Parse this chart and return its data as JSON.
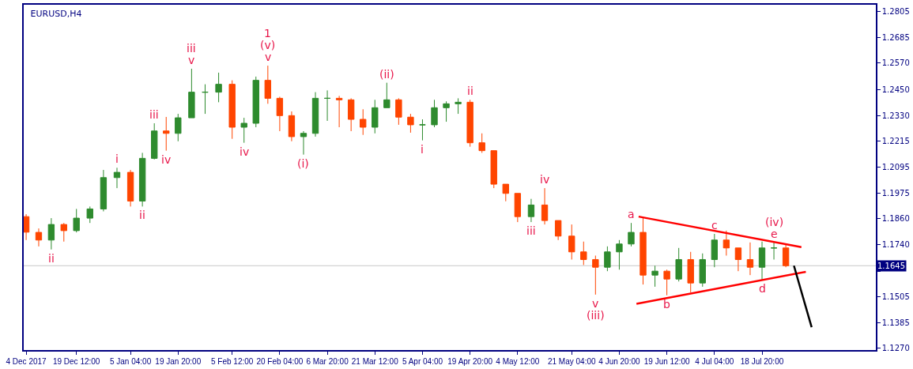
{
  "chart_data": {
    "type": "candlestick",
    "title": "EURUSD,H4",
    "x": [
      "2017-12-04T00:00",
      "2017-12-07T21:00",
      "2017-12-11T18:00",
      "2017-12-15T15:00",
      "2017-12-19T12:00",
      "2017-12-23T16:00",
      "2017-12-27T20:00",
      "2018-01-01T00:00",
      "2018-01-05T04:00",
      "2018-01-08T20:00",
      "2018-01-12T12:00",
      "2018-01-16T04:00",
      "2018-01-19T20:00",
      "2018-01-24T00:00",
      "2018-01-28T04:00",
      "2018-02-01T08:00",
      "2018-02-05T12:00",
      "2018-02-09T04:00",
      "2018-02-12T20:00",
      "2018-02-16T12:00",
      "2018-02-20T04:00",
      "2018-02-23T20:00",
      "2018-02-27T12:00",
      "2018-03-03T04:00",
      "2018-03-06T20:00",
      "2018-03-10T12:00",
      "2018-03-14T04:00",
      "2018-03-17T20:00",
      "2018-03-21T12:00",
      "2018-03-25T04:00",
      "2018-03-28T20:00",
      "2018-04-01T12:00",
      "2018-04-05T04:00",
      "2018-04-08T20:00",
      "2018-04-12T12:00",
      "2018-04-16T04:00",
      "2018-04-19T20:00",
      "2018-04-23T12:00",
      "2018-04-27T04:00",
      "2018-04-30T20:00",
      "2018-05-04T12:00",
      "2018-05-08T16:00",
      "2018-05-12T20:00",
      "2018-05-17T00:00",
      "2018-05-21T04:00",
      "2018-05-24T20:00",
      "2018-05-28T12:00",
      "2018-06-01T04:00",
      "2018-06-04T20:00",
      "2018-06-08T12:00",
      "2018-06-12T04:00",
      "2018-06-15T20:00",
      "2018-06-19T12:00",
      "2018-06-23T04:00",
      "2018-06-26T20:00",
      "2018-06-30T12:00",
      "2018-07-04T04:00",
      "2018-07-07T20:00",
      "2018-07-11T12:00",
      "2018-07-15T04:00",
      "2018-07-18T20:00",
      "2018-07-22T12:00",
      "2018-07-26T04:00"
    ],
    "ohlc": [
      [
        1.1869,
        1.188,
        1.1762,
        1.1798
      ],
      [
        1.1797,
        1.1815,
        1.1733,
        1.1762
      ],
      [
        1.1762,
        1.1862,
        1.1719,
        1.1833
      ],
      [
        1.1833,
        1.184,
        1.1755,
        1.1805
      ],
      [
        1.1805,
        1.1904,
        1.1797,
        1.1862
      ],
      [
        1.1862,
        1.1915,
        1.184,
        1.1904
      ],
      [
        1.1904,
        1.2082,
        1.1893,
        1.2047
      ],
      [
        1.2047,
        1.2092,
        1.1999,
        1.2071
      ],
      [
        1.2071,
        1.2082,
        1.1915,
        1.194
      ],
      [
        1.194,
        1.216,
        1.1915,
        1.2135
      ],
      [
        1.2135,
        1.2295,
        1.213,
        1.226
      ],
      [
        1.226,
        1.2324,
        1.217,
        1.2249
      ],
      [
        1.2249,
        1.2338,
        1.2213,
        1.232
      ],
      [
        1.232,
        1.2544,
        1.232,
        1.2437
      ],
      [
        1.2437,
        1.2473,
        1.2338,
        1.2437
      ],
      [
        1.2437,
        1.2526,
        1.2391,
        1.2473
      ],
      [
        1.2473,
        1.2491,
        1.2224,
        1.2277
      ],
      [
        1.2277,
        1.232,
        1.2206,
        1.2295
      ],
      [
        1.2295,
        1.2508,
        1.2277,
        1.2491
      ],
      [
        1.2491,
        1.2558,
        1.2384,
        1.2409
      ],
      [
        1.2409,
        1.2416,
        1.2259,
        1.233
      ],
      [
        1.233,
        1.2349,
        1.2213,
        1.2234
      ],
      [
        1.2234,
        1.2259,
        1.2152,
        1.2249
      ],
      [
        1.2249,
        1.2437,
        1.2234,
        1.2409
      ],
      [
        1.2409,
        1.2445,
        1.2306,
        1.2409
      ],
      [
        1.2409,
        1.242,
        1.2277,
        1.2402
      ],
      [
        1.2402,
        1.2409,
        1.2259,
        1.2313
      ],
      [
        1.2313,
        1.2359,
        1.2242,
        1.2277
      ],
      [
        1.2277,
        1.2402,
        1.2249,
        1.2366
      ],
      [
        1.2366,
        1.248,
        1.2366,
        1.2402
      ],
      [
        1.2402,
        1.2409,
        1.2288,
        1.2323
      ],
      [
        1.2323,
        1.2338,
        1.2252,
        1.2288
      ],
      [
        1.2288,
        1.2313,
        1.2217,
        1.2288
      ],
      [
        1.2288,
        1.2402,
        1.2277,
        1.2366
      ],
      [
        1.2366,
        1.2395,
        1.2302,
        1.2384
      ],
      [
        1.2384,
        1.2409,
        1.2338,
        1.2391
      ],
      [
        1.2391,
        1.2402,
        1.2188,
        1.2206
      ],
      [
        1.2206,
        1.2249,
        1.216,
        1.217
      ],
      [
        1.217,
        1.217,
        1.1999,
        1.2017
      ],
      [
        1.2017,
        1.2017,
        1.1939,
        1.1975
      ],
      [
        1.1975,
        1.1975,
        1.1844,
        1.1869
      ],
      [
        1.1869,
        1.195,
        1.1844,
        1.1922
      ],
      [
        1.1922,
        1.1999,
        1.1833,
        1.1851
      ],
      [
        1.1851,
        1.1851,
        1.1762,
        1.178
      ],
      [
        1.178,
        1.1833,
        1.1673,
        1.1708
      ],
      [
        1.1708,
        1.1755,
        1.1648,
        1.1673
      ],
      [
        1.1673,
        1.1691,
        1.1513,
        1.1638
      ],
      [
        1.1638,
        1.1733,
        1.162,
        1.1708
      ],
      [
        1.1708,
        1.1762,
        1.1627,
        1.1744
      ],
      [
        1.1744,
        1.184,
        1.1733,
        1.1797
      ],
      [
        1.1797,
        1.1862,
        1.1559,
        1.1602
      ],
      [
        1.1602,
        1.1645,
        1.1549,
        1.162
      ],
      [
        1.162,
        1.1627,
        1.151,
        1.1584
      ],
      [
        1.1584,
        1.1726,
        1.1573,
        1.1673
      ],
      [
        1.1673,
        1.1708,
        1.1523,
        1.1566
      ],
      [
        1.1566,
        1.1701,
        1.1549,
        1.1673
      ],
      [
        1.1673,
        1.179,
        1.1638,
        1.1762
      ],
      [
        1.1762,
        1.1805,
        1.1691,
        1.1726
      ],
      [
        1.1726,
        1.1726,
        1.162,
        1.1673
      ],
      [
        1.1673,
        1.1751,
        1.1602,
        1.1638
      ],
      [
        1.1638,
        1.1755,
        1.158,
        1.1726
      ],
      [
        1.1726,
        1.1751,
        1.1673,
        1.1726
      ],
      [
        1.1726,
        1.1744,
        1.1638,
        1.1645
      ]
    ],
    "colors": [
      "#ff4500",
      "#ff4500",
      "#2e8b2e",
      "#ff4500",
      "#2e8b2e",
      "#2e8b2e",
      "#2e8b2e",
      "#2e8b2e",
      "#ff4500",
      "#2e8b2e",
      "#2e8b2e",
      "#ff4500",
      "#2e8b2e",
      "#2e8b2e",
      "#2e8b2e",
      "#2e8b2e",
      "#ff4500",
      "#2e8b2e",
      "#2e8b2e",
      "#ff4500",
      "#ff4500",
      "#ff4500",
      "#2e8b2e",
      "#2e8b2e",
      "#2e8b2e",
      "#ff4500",
      "#ff4500",
      "#ff4500",
      "#2e8b2e",
      "#2e8b2e",
      "#ff4500",
      "#ff4500",
      "#2e8b2e",
      "#2e8b2e",
      "#2e8b2e",
      "#2e8b2e",
      "#ff4500",
      "#ff4500",
      "#ff4500",
      "#ff4500",
      "#ff4500",
      "#2e8b2e",
      "#ff4500",
      "#ff4500",
      "#ff4500",
      "#ff4500",
      "#ff4500",
      "#2e8b2e",
      "#2e8b2e",
      "#2e8b2e",
      "#ff4500",
      "#2e8b2e",
      "#ff4500",
      "#2e8b2e",
      "#ff4500",
      "#2e8b2e",
      "#2e8b2e",
      "#ff4500",
      "#ff4500",
      "#ff4500",
      "#2e8b2e",
      "#2e8b2e",
      "#ff4500"
    ],
    "series": [
      {
        "type": "line",
        "color": "#ff0000",
        "x": [
          "2018-06-10T19:00",
          "2018-07-30T23:00"
        ],
        "values": [
          1.1869,
          1.173
        ]
      },
      {
        "type": "line",
        "color": "#ff0000",
        "x": [
          "2018-06-10T03:00",
          "2018-08-01T08:00"
        ],
        "values": [
          1.1471,
          1.1617
        ]
      },
      {
        "type": "line",
        "color": "#000000",
        "x": [
          "2018-07-28T16:00",
          "2018-08-03T03:00"
        ],
        "values": [
          1.1645,
          1.1364
        ]
      }
    ],
    "ref_lines": [
      {
        "axis": "y",
        "value": 1.1645,
        "label": "1.1645",
        "color": "#c8c8c8"
      }
    ],
    "annotations": [
      {
        "text": "v",
        "x": "2018-02-16T12:00",
        "y": 1.2558
      },
      {
        "text": "(v)",
        "x": "2018-02-16T12:00",
        "y": 1.2558
      },
      {
        "text": "1",
        "x": "2018-02-16T12:00",
        "y": 1.2558
      },
      {
        "text": "v",
        "x": "2018-01-24T00:00",
        "y": 1.2544
      },
      {
        "text": "iii",
        "x": "2018-01-24T00:00",
        "y": 1.2544
      },
      {
        "text": "i",
        "x": "2018-01-01T00:00",
        "y": 1.2092
      },
      {
        "text": "ii",
        "x": "2018-01-08T20:00",
        "y": 1.1915
      },
      {
        "text": "iii",
        "x": "2018-01-12T12:00",
        "y": 1.2295
      },
      {
        "text": "iv",
        "x": "2018-01-16T04:00",
        "y": 1.217
      },
      {
        "text": "ii",
        "x": "2017-12-11T18:00",
        "y": 1.1719
      },
      {
        "text": "iv",
        "x": "2018-02-09T04:00",
        "y": 1.2206
      },
      {
        "text": "(i)",
        "x": "2018-02-27T12:00",
        "y": 1.2152
      },
      {
        "text": "(ii)",
        "x": "2018-03-25T04:00",
        "y": 1.248
      },
      {
        "text": "i",
        "x": "2018-04-05T04:00",
        "y": 1.2217
      },
      {
        "text": "ii",
        "x": "2018-04-19T20:00",
        "y": 1.2402
      },
      {
        "text": "iv",
        "x": "2018-05-12T20:00",
        "y": 1.1999
      },
      {
        "text": "iii",
        "x": "2018-05-08T16:00",
        "y": 1.1844
      },
      {
        "text": "v",
        "x": "2018-05-28T12:00",
        "y": 1.1513
      },
      {
        "text": "(iii)",
        "x": "2018-05-28T12:00",
        "y": 1.1513
      },
      {
        "text": "a",
        "x": "2018-06-08T12:00",
        "y": 1.184
      },
      {
        "text": "b",
        "x": "2018-06-19T12:00",
        "y": 1.151
      },
      {
        "text": "c",
        "x": "2018-07-04T04:00",
        "y": 1.179
      },
      {
        "text": "e",
        "x": "2018-07-22T12:00",
        "y": 1.1751
      },
      {
        "text": "(iv)",
        "x": "2018-07-22T12:00",
        "y": 1.1751
      },
      {
        "text": "d",
        "x": "2018-07-18T20:00",
        "y": 1.158
      }
    ],
    "xlim": [
      "2017-12-03T06:00",
      "2018-08-22T22:00"
    ],
    "xticks": [
      {
        "value": "2017-12-04T00:00",
        "label": "4 Dec 2017"
      },
      {
        "value": "2017-12-19T12:00",
        "label": "19 Dec 12:00"
      },
      {
        "value": "2018-01-05T04:00",
        "label": "5 Jan 04:00"
      },
      {
        "value": "2018-01-19T20:00",
        "label": "19 Jan 20:00"
      },
      {
        "value": "2018-02-05T12:00",
        "label": "5 Feb 12:00"
      },
      {
        "value": "2018-02-20T04:00",
        "label": "20 Feb 04:00"
      },
      {
        "value": "2018-03-06T20:00",
        "label": "6 Mar 20:00"
      },
      {
        "value": "2018-03-21T12:00",
        "label": "21 Mar 12:00"
      },
      {
        "value": "2018-04-05T04:00",
        "label": "5 Apr 04:00"
      },
      {
        "value": "2018-04-19T20:00",
        "label": "19 Apr 20:00"
      },
      {
        "value": "2018-05-04T12:00",
        "label": "4 May 12:00"
      },
      {
        "value": "2018-05-21T04:00",
        "label": "21 May 04:00"
      },
      {
        "value": "2018-06-04T20:00",
        "label": "4 Jun 20:00"
      },
      {
        "value": "2018-06-19T12:00",
        "label": "19 Jun 12:00"
      },
      {
        "value": "2018-07-04T04:00",
        "label": "4 Jul 04:00"
      },
      {
        "value": "2018-07-18T20:00",
        "label": "18 Jul 20:00"
      }
    ],
    "ylim": [
      1.126,
      1.2836
    ],
    "yticks": [
      1.2805,
      1.2685,
      {
        "value": 1.257,
        "label": "1.2570"
      },
      {
        "value": 1.245,
        "label": "1.2450"
      },
      {
        "value": 1.233,
        "label": "1.2330"
      },
      1.2215,
      1.2095,
      1.1975,
      {
        "value": 1.186,
        "label": "1.1860"
      },
      {
        "value": 1.174,
        "label": "1.1740"
      },
      {
        "value": 1.162,
        "label": null
      },
      1.1505,
      1.1385,
      {
        "value": 1.127,
        "label": "1.1270"
      }
    ],
    "grid": false
  }
}
